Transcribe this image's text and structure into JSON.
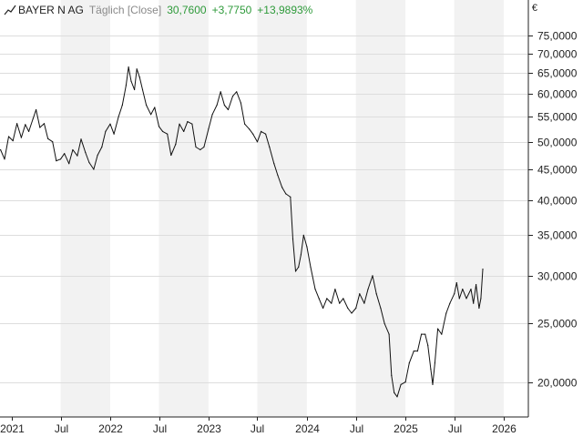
{
  "header": {
    "name": "BAYER N AG",
    "mode": "Täglich [Close]",
    "last": "30,7600",
    "change": "+3,7750",
    "change_pct": "+13,9893%"
  },
  "colors": {
    "line": "#111111",
    "positive": "#2e9a3a",
    "band": "#f2f2f2",
    "grid": "#dddddd",
    "axis": "#222222"
  },
  "chart_data": {
    "type": "line",
    "scale": "log",
    "currency": "€",
    "ylim": [
      17.5,
      79
    ],
    "xlim": [
      "2020-11-18",
      "2026-04-02"
    ],
    "yticks": [
      {
        "value": 75,
        "label": "75,0000"
      },
      {
        "value": 70,
        "label": "70,0000"
      },
      {
        "value": 65,
        "label": "65,0000"
      },
      {
        "value": 60,
        "label": "60,0000"
      },
      {
        "value": 55,
        "label": "55,0000"
      },
      {
        "value": 50,
        "label": "50,0000"
      },
      {
        "value": 45,
        "label": "45,0000"
      },
      {
        "value": 40,
        "label": "40,0000"
      },
      {
        "value": 35,
        "label": "35,0000"
      },
      {
        "value": 30,
        "label": "30,0000"
      },
      {
        "value": 25,
        "label": "25,0000"
      },
      {
        "value": 20,
        "label": "20,0000"
      }
    ],
    "xticks": [
      {
        "date": "2021-01-01",
        "label": "2021"
      },
      {
        "date": "2021-07-01",
        "label": "Jul"
      },
      {
        "date": "2022-01-01",
        "label": "2022"
      },
      {
        "date": "2022-07-01",
        "label": "Jul"
      },
      {
        "date": "2023-01-01",
        "label": "2023"
      },
      {
        "date": "2023-07-01",
        "label": "Jul"
      },
      {
        "date": "2024-01-01",
        "label": "2024"
      },
      {
        "date": "2024-07-01",
        "label": "Jul"
      },
      {
        "date": "2025-01-01",
        "label": "2025"
      },
      {
        "date": "2025-07-01",
        "label": "Jul"
      },
      {
        "date": "2026-01-01",
        "label": "2026"
      }
    ],
    "series": [
      {
        "points": [
          [
            "2020-11-20",
            48.5
          ],
          [
            "2020-12-05",
            46.8
          ],
          [
            "2020-12-20",
            51.0
          ],
          [
            "2021-01-05",
            50.2
          ],
          [
            "2021-01-20",
            53.6
          ],
          [
            "2021-02-05",
            50.8
          ],
          [
            "2021-02-20",
            53.4
          ],
          [
            "2021-03-05",
            52.0
          ],
          [
            "2021-03-20",
            54.5
          ],
          [
            "2021-04-01",
            56.5
          ],
          [
            "2021-04-15",
            52.8
          ],
          [
            "2021-05-01",
            53.6
          ],
          [
            "2021-05-15",
            50.6
          ],
          [
            "2021-06-01",
            50.0
          ],
          [
            "2021-06-15",
            46.5
          ],
          [
            "2021-07-01",
            46.8
          ],
          [
            "2021-07-15",
            47.8
          ],
          [
            "2021-08-01",
            46.0
          ],
          [
            "2021-08-15",
            48.5
          ],
          [
            "2021-09-01",
            47.4
          ],
          [
            "2021-09-15",
            50.5
          ],
          [
            "2021-10-01",
            48.0
          ],
          [
            "2021-10-15",
            46.2
          ],
          [
            "2021-11-01",
            45.0
          ],
          [
            "2021-11-15",
            47.5
          ],
          [
            "2021-12-01",
            49.0
          ],
          [
            "2021-12-15",
            52.0
          ],
          [
            "2022-01-01",
            53.5
          ],
          [
            "2022-01-15",
            51.5
          ],
          [
            "2022-02-01",
            55.0
          ],
          [
            "2022-02-15",
            57.5
          ],
          [
            "2022-03-01",
            62.0
          ],
          [
            "2022-03-10",
            66.5
          ],
          [
            "2022-03-20",
            63.0
          ],
          [
            "2022-04-01",
            61.0
          ],
          [
            "2022-04-10",
            66.0
          ],
          [
            "2022-04-20",
            64.0
          ],
          [
            "2022-05-01",
            61.0
          ],
          [
            "2022-05-15",
            57.5
          ],
          [
            "2022-06-01",
            55.5
          ],
          [
            "2022-06-15",
            57.0
          ],
          [
            "2022-07-01",
            53.0
          ],
          [
            "2022-07-15",
            52.0
          ],
          [
            "2022-08-01",
            51.5
          ],
          [
            "2022-08-15",
            47.5
          ],
          [
            "2022-09-01",
            49.5
          ],
          [
            "2022-09-15",
            53.5
          ],
          [
            "2022-10-01",
            52.0
          ],
          [
            "2022-10-15",
            54.0
          ],
          [
            "2022-11-01",
            53.5
          ],
          [
            "2022-11-15",
            49.0
          ],
          [
            "2022-12-01",
            48.5
          ],
          [
            "2022-12-15",
            49.0
          ],
          [
            "2023-01-01",
            52.5
          ],
          [
            "2023-01-15",
            55.5
          ],
          [
            "2023-02-01",
            57.5
          ],
          [
            "2023-02-15",
            60.5
          ],
          [
            "2023-03-01",
            57.5
          ],
          [
            "2023-03-15",
            56.5
          ],
          [
            "2023-04-01",
            59.5
          ],
          [
            "2023-04-15",
            60.5
          ],
          [
            "2023-05-01",
            58.0
          ],
          [
            "2023-05-15",
            53.5
          ],
          [
            "2023-06-01",
            52.5
          ],
          [
            "2023-06-15",
            51.5
          ],
          [
            "2023-07-01",
            50.0
          ],
          [
            "2023-07-15",
            52.0
          ],
          [
            "2023-08-01",
            51.5
          ],
          [
            "2023-08-15",
            49.0
          ],
          [
            "2023-09-01",
            46.0
          ],
          [
            "2023-09-15",
            44.0
          ],
          [
            "2023-10-01",
            42.0
          ],
          [
            "2023-10-15",
            41.0
          ],
          [
            "2023-11-01",
            40.5
          ],
          [
            "2023-11-10",
            34.5
          ],
          [
            "2023-11-20",
            30.5
          ],
          [
            "2023-12-01",
            31.0
          ],
          [
            "2023-12-10",
            32.5
          ],
          [
            "2023-12-20",
            35.0
          ],
          [
            "2024-01-01",
            33.5
          ],
          [
            "2024-01-15",
            31.0
          ],
          [
            "2024-02-01",
            28.5
          ],
          [
            "2024-02-15",
            27.5
          ],
          [
            "2024-03-01",
            26.5
          ],
          [
            "2024-03-15",
            27.5
          ],
          [
            "2024-04-01",
            27.0
          ],
          [
            "2024-04-15",
            28.5
          ],
          [
            "2024-05-01",
            27.0
          ],
          [
            "2024-05-15",
            27.5
          ],
          [
            "2024-06-01",
            26.5
          ],
          [
            "2024-06-15",
            26.0
          ],
          [
            "2024-07-01",
            26.5
          ],
          [
            "2024-07-15",
            28.0
          ],
          [
            "2024-08-01",
            27.0
          ],
          [
            "2024-08-15",
            28.5
          ],
          [
            "2024-09-01",
            30.0
          ],
          [
            "2024-09-15",
            28.0
          ],
          [
            "2024-10-01",
            26.5
          ],
          [
            "2024-10-15",
            25.0
          ],
          [
            "2024-11-01",
            24.0
          ],
          [
            "2024-11-10",
            20.5
          ],
          [
            "2024-11-20",
            19.2
          ],
          [
            "2024-12-01",
            18.9
          ],
          [
            "2024-12-15",
            19.8
          ],
          [
            "2025-01-01",
            20.0
          ],
          [
            "2025-01-15",
            21.5
          ],
          [
            "2025-02-01",
            22.5
          ],
          [
            "2025-02-15",
            22.5
          ],
          [
            "2025-03-01",
            24.0
          ],
          [
            "2025-03-15",
            24.0
          ],
          [
            "2025-03-25",
            23.0
          ],
          [
            "2025-04-05",
            21.0
          ],
          [
            "2025-04-12",
            19.8
          ],
          [
            "2025-04-20",
            21.5
          ],
          [
            "2025-05-01",
            24.5
          ],
          [
            "2025-05-15",
            24.0
          ],
          [
            "2025-06-01",
            26.0
          ],
          [
            "2025-06-15",
            27.0
          ],
          [
            "2025-07-01",
            28.0
          ],
          [
            "2025-07-10",
            29.2
          ],
          [
            "2025-07-20",
            27.5
          ],
          [
            "2025-08-01",
            28.5
          ],
          [
            "2025-08-15",
            27.5
          ],
          [
            "2025-09-01",
            28.5
          ],
          [
            "2025-09-10",
            27.0
          ],
          [
            "2025-09-20",
            29.0
          ],
          [
            "2025-10-01",
            26.5
          ],
          [
            "2025-10-08",
            27.5
          ],
          [
            "2025-10-15",
            30.76
          ]
        ]
      }
    ]
  }
}
